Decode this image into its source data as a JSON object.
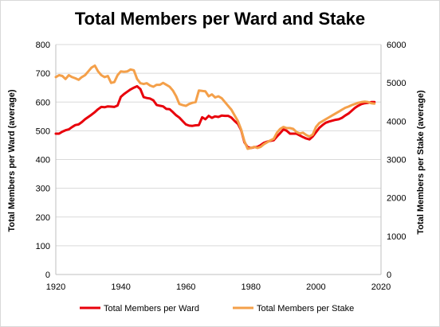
{
  "chart_data": {
    "type": "line",
    "title": "Total Members per Ward and Stake",
    "xlabel": "",
    "ylabel": "Total Members per Ward (average)",
    "y2label": "Total Members per Stake (average)",
    "xlim": [
      1920,
      2020
    ],
    "ylim": [
      0,
      800
    ],
    "y2lim": [
      0,
      6000
    ],
    "x_ticks": [
      "1920",
      "1940",
      "1960",
      "1980",
      "2000",
      "2020"
    ],
    "y_ticks": [
      "0",
      "100",
      "200",
      "300",
      "400",
      "500",
      "600",
      "700",
      "800"
    ],
    "y2_ticks": [
      "0",
      "1000",
      "2000",
      "3000",
      "4000",
      "5000",
      "6000"
    ],
    "grid": "horizontal",
    "legend": "bottom",
    "series": [
      {
        "name": "Total Members per Ward",
        "color": "#e8000b",
        "axis": "left",
        "x": [
          1920,
          1921,
          1922,
          1923,
          1924,
          1925,
          1926,
          1927,
          1928,
          1929,
          1930,
          1931,
          1932,
          1933,
          1934,
          1935,
          1936,
          1937,
          1938,
          1939,
          1940,
          1941,
          1942,
          1943,
          1944,
          1945,
          1946,
          1947,
          1948,
          1949,
          1950,
          1951,
          1952,
          1953,
          1954,
          1955,
          1956,
          1957,
          1958,
          1959,
          1960,
          1961,
          1962,
          1963,
          1964,
          1965,
          1966,
          1967,
          1968,
          1969,
          1970,
          1971,
          1972,
          1973,
          1974,
          1975,
          1976,
          1977,
          1978,
          1979,
          1980,
          1981,
          1982,
          1983,
          1984,
          1985,
          1986,
          1987,
          1988,
          1989,
          1990,
          1991,
          1992,
          1993,
          1994,
          1995,
          1996,
          1997,
          1998,
          1999,
          2000,
          2001,
          2002,
          2003,
          2004,
          2005,
          2006,
          2007,
          2008,
          2009,
          2010,
          2011,
          2012,
          2013,
          2014,
          2015,
          2016,
          2017,
          2018
        ],
        "values": [
          490,
          490,
          497,
          502,
          505,
          513,
          520,
          522,
          530,
          540,
          548,
          556,
          565,
          575,
          583,
          582,
          585,
          584,
          583,
          588,
          618,
          628,
          636,
          644,
          650,
          655,
          645,
          617,
          614,
          612,
          606,
          590,
          587,
          585,
          576,
          575,
          565,
          554,
          546,
          534,
          522,
          518,
          517,
          519,
          520,
          547,
          540,
          552,
          545,
          550,
          548,
          553,
          552,
          552,
          546,
          534,
          524,
          502,
          460,
          443,
          440,
          443,
          444,
          450,
          458,
          462,
          465,
          467,
          480,
          492,
          505,
          500,
          490,
          490,
          490,
          484,
          478,
          473,
          470,
          480,
          495,
          510,
          520,
          528,
          532,
          535,
          538,
          540,
          545,
          553,
          560,
          570,
          580,
          587,
          593,
          596,
          597,
          600,
          600
        ]
      },
      {
        "name": "Total Members per Stake",
        "color": "#f4a04a",
        "axis": "right",
        "x": [
          1920,
          1921,
          1922,
          1923,
          1924,
          1925,
          1926,
          1927,
          1928,
          1929,
          1930,
          1931,
          1932,
          1933,
          1934,
          1935,
          1936,
          1937,
          1938,
          1939,
          1940,
          1941,
          1942,
          1943,
          1944,
          1945,
          1946,
          1947,
          1948,
          1949,
          1950,
          1951,
          1952,
          1953,
          1954,
          1955,
          1956,
          1957,
          1958,
          1959,
          1960,
          1961,
          1962,
          1963,
          1964,
          1965,
          1966,
          1967,
          1968,
          1969,
          1970,
          1971,
          1972,
          1973,
          1974,
          1975,
          1976,
          1977,
          1978,
          1979,
          1980,
          1981,
          1982,
          1983,
          1984,
          1985,
          1986,
          1987,
          1988,
          1989,
          1990,
          1991,
          1992,
          1993,
          1994,
          1995,
          1996,
          1997,
          1998,
          1999,
          2000,
          2001,
          2002,
          2003,
          2004,
          2005,
          2006,
          2007,
          2008,
          2009,
          2010,
          2011,
          2012,
          2013,
          2014,
          2015,
          2016,
          2017,
          2018
        ],
        "values": [
          5150,
          5200,
          5180,
          5100,
          5200,
          5150,
          5120,
          5080,
          5150,
          5200,
          5300,
          5400,
          5450,
          5300,
          5200,
          5150,
          5180,
          5000,
          5020,
          5200,
          5300,
          5290,
          5300,
          5350,
          5330,
          5100,
          4990,
          4970,
          4990,
          4930,
          4900,
          4950,
          4950,
          5000,
          4950,
          4900,
          4800,
          4650,
          4450,
          4420,
          4400,
          4450,
          4480,
          4500,
          4800,
          4790,
          4780,
          4650,
          4700,
          4620,
          4650,
          4600,
          4500,
          4400,
          4300,
          4150,
          4000,
          3780,
          3480,
          3280,
          3300,
          3330,
          3300,
          3330,
          3400,
          3450,
          3500,
          3540,
          3700,
          3800,
          3850,
          3820,
          3820,
          3800,
          3720,
          3680,
          3700,
          3640,
          3600,
          3650,
          3850,
          3950,
          4000,
          4050,
          4100,
          4150,
          4200,
          4250,
          4300,
          4350,
          4380,
          4420,
          4450,
          4480,
          4500,
          4510,
          4500,
          4470,
          4460
        ]
      }
    ]
  }
}
